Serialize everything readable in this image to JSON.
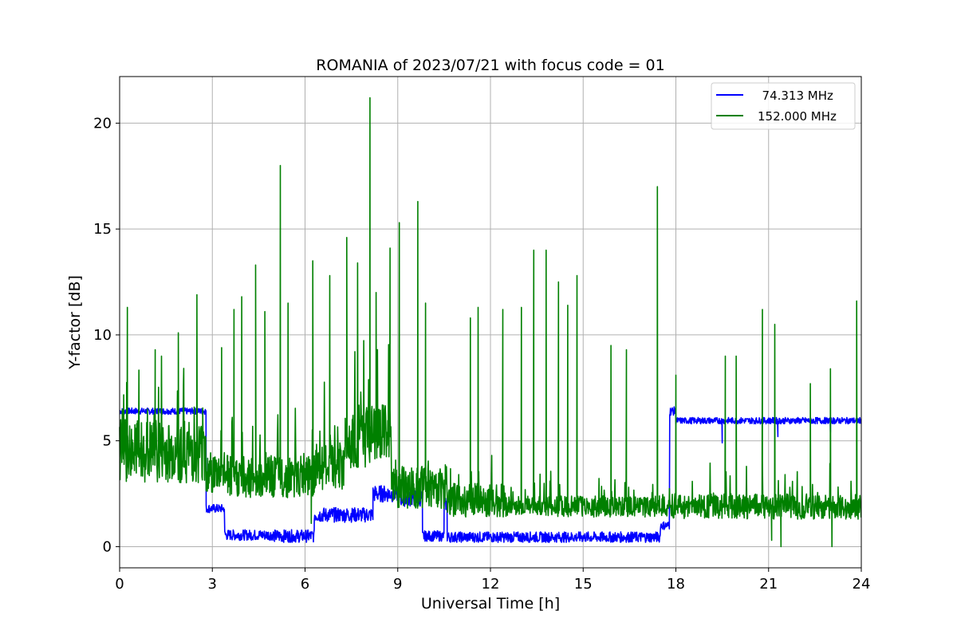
{
  "chart_data": {
    "type": "line",
    "title": "ROMANIA of 2023/07/21 with focus code = 01",
    "xlabel": "Universal Time [h]",
    "ylabel": "Y-factor [dB]",
    "xlim": [
      0,
      24
    ],
    "ylim": [
      -1,
      22.2
    ],
    "xticks": [
      0,
      3,
      6,
      9,
      12,
      15,
      18,
      21,
      24
    ],
    "yticks": [
      0,
      5,
      10,
      15,
      20
    ],
    "grid": true,
    "legend_position": "top-right",
    "series": [
      {
        "name": "  74.313 MHz",
        "color": "#0000ff",
        "segments": [
          {
            "x": [
              0,
              2.8
            ],
            "base": 6.4,
            "noise": 0.15
          },
          {
            "x": [
              2.8,
              3.4
            ],
            "base": 1.8,
            "noise": 0.2
          },
          {
            "x": [
              3.4,
              5.0
            ],
            "base": 0.55,
            "noise": 0.25
          },
          {
            "x": [
              5.0,
              6.3
            ],
            "base": 0.5,
            "noise": 0.3
          },
          {
            "x": [
              6.3,
              8.2
            ],
            "base": 1.5,
            "noise": 0.35
          },
          {
            "x": [
              8.2,
              9.1
            ],
            "base": 2.5,
            "noise": 0.4
          },
          {
            "x": [
              9.1,
              9.8
            ],
            "base": 2.3,
            "noise": 0.4
          },
          {
            "x": [
              9.8,
              10.5
            ],
            "base": 0.5,
            "noise": 0.25
          },
          {
            "x": [
              10.5,
              10.6
            ],
            "base": 2.0,
            "noise": 0.3
          },
          {
            "x": [
              10.6,
              17.5
            ],
            "base": 0.45,
            "noise": 0.25
          },
          {
            "x": [
              17.5,
              17.8
            ],
            "base": 1.0,
            "noise": 0.2
          },
          {
            "x": [
              17.8,
              18.0
            ],
            "base": 6.4,
            "noise": 0.2
          },
          {
            "x": [
              18.0,
              24
            ],
            "base": 5.95,
            "noise": 0.15
          }
        ],
        "dips": [
          {
            "x": 19.5,
            "y": 4.9
          },
          {
            "x": 21.3,
            "y": 5.2
          },
          {
            "x": 23.0,
            "y": 5.4
          }
        ]
      },
      {
        "name": "152.000 MHz",
        "color": "#008000",
        "segments": [
          {
            "x": [
              0,
              2.8
            ],
            "base": 4.5,
            "noise": 1.5
          },
          {
            "x": [
              2.8,
              3.5
            ],
            "base": 3.5,
            "noise": 1.0
          },
          {
            "x": [
              3.5,
              6.3
            ],
            "base": 3.3,
            "noise": 1.0
          },
          {
            "x": [
              6.3,
              7.3
            ],
            "base": 3.8,
            "noise": 1.1
          },
          {
            "x": [
              7.3,
              8.8
            ],
            "base": 5.2,
            "noise": 1.5
          },
          {
            "x": [
              8.8,
              10.6
            ],
            "base": 2.8,
            "noise": 1.0
          },
          {
            "x": [
              10.6,
              12.5
            ],
            "base": 2.2,
            "noise": 0.8
          },
          {
            "x": [
              12.5,
              17.8
            ],
            "base": 1.9,
            "noise": 0.5
          },
          {
            "x": [
              17.8,
              24
            ],
            "base": 1.9,
            "noise": 0.6
          }
        ],
        "spikes": [
          {
            "x": 0.25,
            "y": 11.3
          },
          {
            "x": 1.15,
            "y": 9.3
          },
          {
            "x": 1.9,
            "y": 10.1
          },
          {
            "x": 2.5,
            "y": 11.9
          },
          {
            "x": 3.3,
            "y": 9.4
          },
          {
            "x": 3.7,
            "y": 11.2
          },
          {
            "x": 3.95,
            "y": 11.8
          },
          {
            "x": 4.4,
            "y": 13.3
          },
          {
            "x": 4.7,
            "y": 11.1
          },
          {
            "x": 5.2,
            "y": 18.0
          },
          {
            "x": 5.45,
            "y": 11.5
          },
          {
            "x": 6.25,
            "y": 13.5
          },
          {
            "x": 6.8,
            "y": 12.8
          },
          {
            "x": 7.35,
            "y": 14.6
          },
          {
            "x": 7.7,
            "y": 13.4
          },
          {
            "x": 8.1,
            "y": 21.2
          },
          {
            "x": 8.3,
            "y": 12.0
          },
          {
            "x": 8.75,
            "y": 14.1
          },
          {
            "x": 9.05,
            "y": 15.3
          },
          {
            "x": 9.65,
            "y": 16.3
          },
          {
            "x": 9.9,
            "y": 11.5
          },
          {
            "x": 11.35,
            "y": 10.8
          },
          {
            "x": 11.6,
            "y": 11.3
          },
          {
            "x": 12.4,
            "y": 11.2
          },
          {
            "x": 13.0,
            "y": 11.3
          },
          {
            "x": 13.4,
            "y": 14.0
          },
          {
            "x": 13.8,
            "y": 14.0
          },
          {
            "x": 14.2,
            "y": 12.5
          },
          {
            "x": 14.5,
            "y": 11.4
          },
          {
            "x": 14.8,
            "y": 12.8
          },
          {
            "x": 15.9,
            "y": 9.5
          },
          {
            "x": 16.4,
            "y": 9.3
          },
          {
            "x": 17.4,
            "y": 17.0
          },
          {
            "x": 18.0,
            "y": 8.1
          },
          {
            "x": 19.6,
            "y": 9.0
          },
          {
            "x": 19.95,
            "y": 9.0
          },
          {
            "x": 20.8,
            "y": 11.2
          },
          {
            "x": 21.2,
            "y": 10.5
          },
          {
            "x": 22.35,
            "y": 7.7
          },
          {
            "x": 23.0,
            "y": 8.4
          },
          {
            "x": 23.85,
            "y": 11.6
          }
        ],
        "dips": [
          {
            "x": 6.2,
            "y": 1.1
          },
          {
            "x": 21.1,
            "y": 0.3
          },
          {
            "x": 21.4,
            "y": 0.0
          },
          {
            "x": 23.05,
            "y": 0.0
          }
        ]
      }
    ]
  }
}
